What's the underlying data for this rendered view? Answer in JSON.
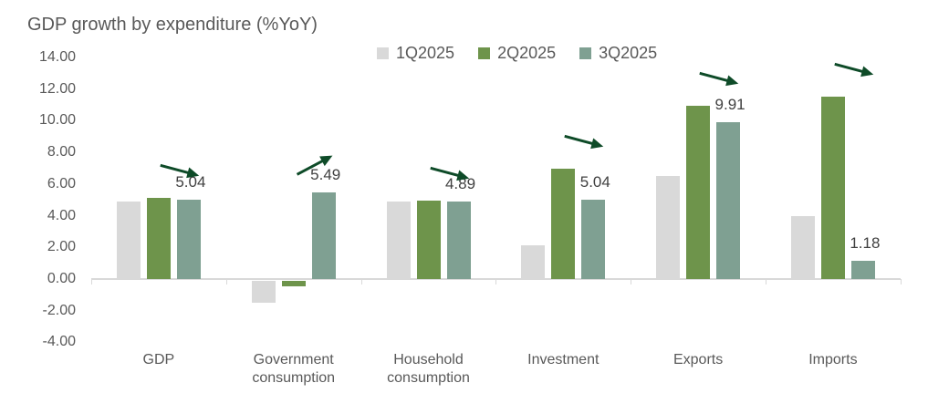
{
  "title": "GDP growth by expenditure (%YoY)",
  "colors": {
    "series_1q": "#d9d9d9",
    "series_2q": "#6e944b",
    "series_3q": "#7fa092",
    "arrow": "#0e4b28",
    "axis": "#d9d9d9",
    "text": "#595959",
    "data_label_text": "#404040",
    "background": "#ffffff"
  },
  "chart_data": {
    "type": "bar",
    "title": "GDP growth by expenditure (%YoY)",
    "categories": [
      "GDP",
      "Government consumption",
      "Household consumption",
      "Investment",
      "Exports",
      "Imports"
    ],
    "series": [
      {
        "name": "1Q2025",
        "color": "#d9d9d9",
        "values": [
          4.87,
          -1.38,
          4.89,
          2.12,
          6.5,
          3.96
        ]
      },
      {
        "name": "2Q2025",
        "color": "#6e944b",
        "values": [
          5.12,
          -0.33,
          4.97,
          6.99,
          10.97,
          11.5
        ]
      },
      {
        "name": "3Q2025",
        "color": "#7fa092",
        "values": [
          5.04,
          5.49,
          4.89,
          5.04,
          9.91,
          1.18
        ]
      }
    ],
    "data_labels": {
      "series": "3Q2025",
      "values": [
        "5.04",
        "5.49",
        "4.89",
        "5.04",
        "9.91",
        "1.18"
      ]
    },
    "trend_arrows": [
      "down",
      "up",
      "down",
      "down",
      "down",
      "down"
    ],
    "ylim": [
      -4,
      14
    ],
    "ytick_step": 2,
    "ytick_labels": [
      "14.00",
      "12.00",
      "10.00",
      "8.00",
      "6.00",
      "4.00",
      "2.00",
      "0.00",
      "-2.00",
      "-4.00"
    ],
    "legend_position": "top-center",
    "grid": false,
    "xlabel": "",
    "ylabel": ""
  }
}
